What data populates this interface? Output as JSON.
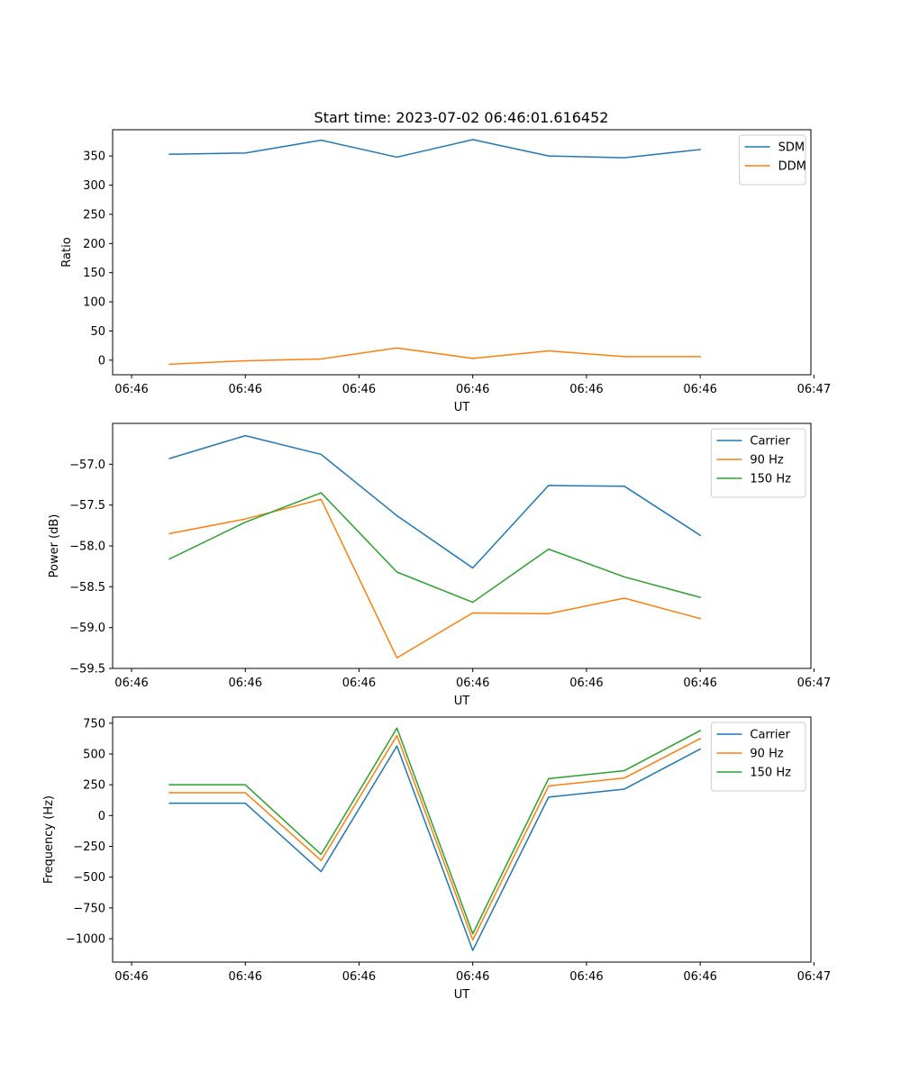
{
  "figure": {
    "title": "Start time: 2023-07-02 06:46:01.616452"
  },
  "chart_data": [
    {
      "type": "line",
      "title": "Start time: 2023-07-02 06:46:01.616452",
      "xlabel": "UT",
      "ylabel": "Ratio",
      "x": [
        1,
        2,
        3,
        4,
        5,
        6,
        7,
        8
      ],
      "xlim": [
        0.25,
        9.46
      ],
      "xticks": [
        0.5,
        2.0,
        3.5,
        5.0,
        6.5,
        8.0,
        9.5
      ],
      "xtick_labels": [
        "06:46",
        "06:46",
        "06:46",
        "06:46",
        "06:46",
        "06:46",
        "06:47"
      ],
      "ylim": [
        -25,
        395
      ],
      "yticks": [
        0,
        50,
        100,
        150,
        200,
        250,
        300,
        350
      ],
      "ytick_labels": [
        "0",
        "50",
        "100",
        "150",
        "200",
        "250",
        "300",
        "350"
      ],
      "legend_position": "top-right",
      "series": [
        {
          "name": "SDM",
          "color": "#1f77b4",
          "values": [
            353,
            355,
            377,
            348,
            378,
            350,
            347,
            361
          ]
        },
        {
          "name": "DDM",
          "color": "#ff7f0e",
          "values": [
            -7,
            -1,
            2,
            21,
            3,
            16,
            6,
            6
          ]
        }
      ]
    },
    {
      "type": "line",
      "title": "",
      "xlabel": "UT",
      "ylabel": "Power (dB)",
      "x": [
        1,
        2,
        3,
        4,
        5,
        6,
        7,
        8
      ],
      "xlim": [
        0.25,
        9.46
      ],
      "xticks": [
        0.5,
        2.0,
        3.5,
        5.0,
        6.5,
        8.0,
        9.5
      ],
      "xtick_labels": [
        "06:46",
        "06:46",
        "06:46",
        "06:46",
        "06:46",
        "06:46",
        "06:47"
      ],
      "ylim": [
        -59.5,
        -56.5
      ],
      "yticks": [
        -57.0,
        -57.5,
        -58.0,
        -58.5,
        -59.0,
        -59.5
      ],
      "ytick_labels": [
        "−57.0",
        "−57.5",
        "−58.0",
        "−58.5",
        "−59.0",
        "−59.5"
      ],
      "legend_position": "top-right",
      "series": [
        {
          "name": "Carrier",
          "color": "#1f77b4",
          "values": [
            -56.93,
            -56.65,
            -56.88,
            -57.63,
            -58.27,
            -57.26,
            -57.27,
            -57.87
          ]
        },
        {
          "name": "90 Hz",
          "color": "#ff7f0e",
          "values": [
            -57.85,
            -57.67,
            -57.43,
            -59.37,
            -58.82,
            -58.83,
            -58.64,
            -58.89
          ]
        },
        {
          "name": "150 Hz",
          "color": "#2ca02c",
          "values": [
            -58.16,
            -57.71,
            -57.35,
            -58.32,
            -58.69,
            -58.04,
            -58.38,
            -58.63
          ]
        }
      ]
    },
    {
      "type": "line",
      "title": "",
      "xlabel": "UT",
      "ylabel": "Frequency (Hz)",
      "x": [
        1,
        2,
        3,
        4,
        5,
        6,
        7,
        8
      ],
      "xlim": [
        0.25,
        9.46
      ],
      "xticks": [
        0.5,
        2.0,
        3.5,
        5.0,
        6.5,
        8.0,
        9.5
      ],
      "xtick_labels": [
        "06:46",
        "06:46",
        "06:46",
        "06:46",
        "06:46",
        "06:46",
        "06:47"
      ],
      "ylim": [
        -1190,
        800
      ],
      "yticks": [
        750,
        500,
        250,
        0,
        -250,
        -500,
        -750,
        -1000
      ],
      "ytick_labels": [
        "750",
        "500",
        "250",
        "0",
        "−250",
        "−500",
        "−750",
        "−1000"
      ],
      "legend_position": "top-right",
      "series": [
        {
          "name": "Carrier",
          "color": "#1f77b4",
          "values": [
            100,
            100,
            -455,
            565,
            -1095,
            150,
            215,
            540
          ]
        },
        {
          "name": "90 Hz",
          "color": "#ff7f0e",
          "values": [
            185,
            185,
            -365,
            650,
            -1010,
            240,
            305,
            625
          ]
        },
        {
          "name": "150 Hz",
          "color": "#2ca02c",
          "values": [
            250,
            250,
            -315,
            710,
            -960,
            300,
            365,
            690
          ]
        }
      ]
    }
  ]
}
